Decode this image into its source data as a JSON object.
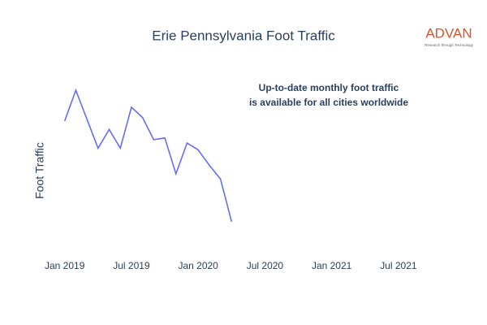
{
  "chart_data": {
    "type": "line",
    "title": "Erie Pennsylvania Foot Traffic",
    "y_label": "Foot Traffic",
    "annotation": [
      "Up-to-date monthly foot traffic",
      "is available for all cities worldwide"
    ],
    "logo": {
      "name": "ADVAN",
      "tagline": "Research through Technology"
    },
    "x": [
      "2019-01",
      "2019-02",
      "2019-03",
      "2019-04",
      "2019-05",
      "2019-06",
      "2019-07",
      "2019-08",
      "2019-09",
      "2019-10",
      "2019-11",
      "2019-12",
      "2020-01",
      "2020-02",
      "2020-03",
      "2020-04"
    ],
    "series": [
      {
        "name": "Foot Traffic",
        "color": "#636efa",
        "values": [
          72,
          90,
          73,
          56,
          67,
          56,
          80,
          74,
          61,
          62,
          41,
          59,
          55,
          46,
          38,
          13
        ]
      }
    ],
    "xlim": [
      "2018-12",
      "2021-10"
    ],
    "xticks": [
      {
        "value": "2019-01",
        "label": "Jan 2019"
      },
      {
        "value": "2019-07",
        "label": "Jul 2019"
      },
      {
        "value": "2020-01",
        "label": "Jan 2020"
      },
      {
        "value": "2020-07",
        "label": "Jul 2020"
      },
      {
        "value": "2021-01",
        "label": "Jan 2021"
      },
      {
        "value": "2021-07",
        "label": "Jul 2021"
      }
    ],
    "ylim": [
      0,
      100
    ],
    "grid": false
  }
}
